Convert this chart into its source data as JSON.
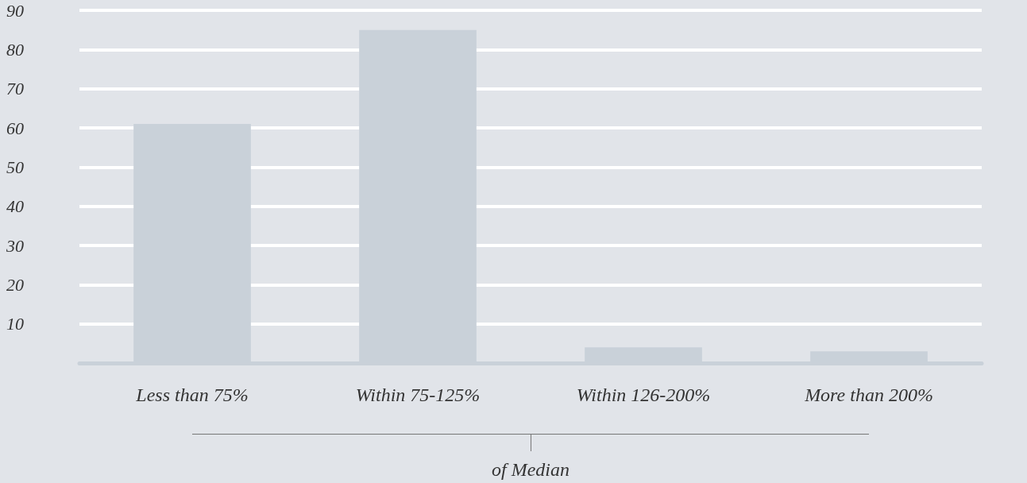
{
  "chart_data": {
    "type": "bar",
    "xlabel": "of Median",
    "categories": [
      "Less than 75%",
      "Within 75-125%",
      "Within 126-200%",
      "More than 200%"
    ],
    "values": [
      61,
      85,
      4,
      3
    ],
    "color": "#c9d1d9",
    "ylim": [
      0,
      90
    ],
    "yticks": [
      10,
      20,
      30,
      40,
      50,
      60,
      70,
      80,
      90
    ],
    "grid": "y"
  }
}
